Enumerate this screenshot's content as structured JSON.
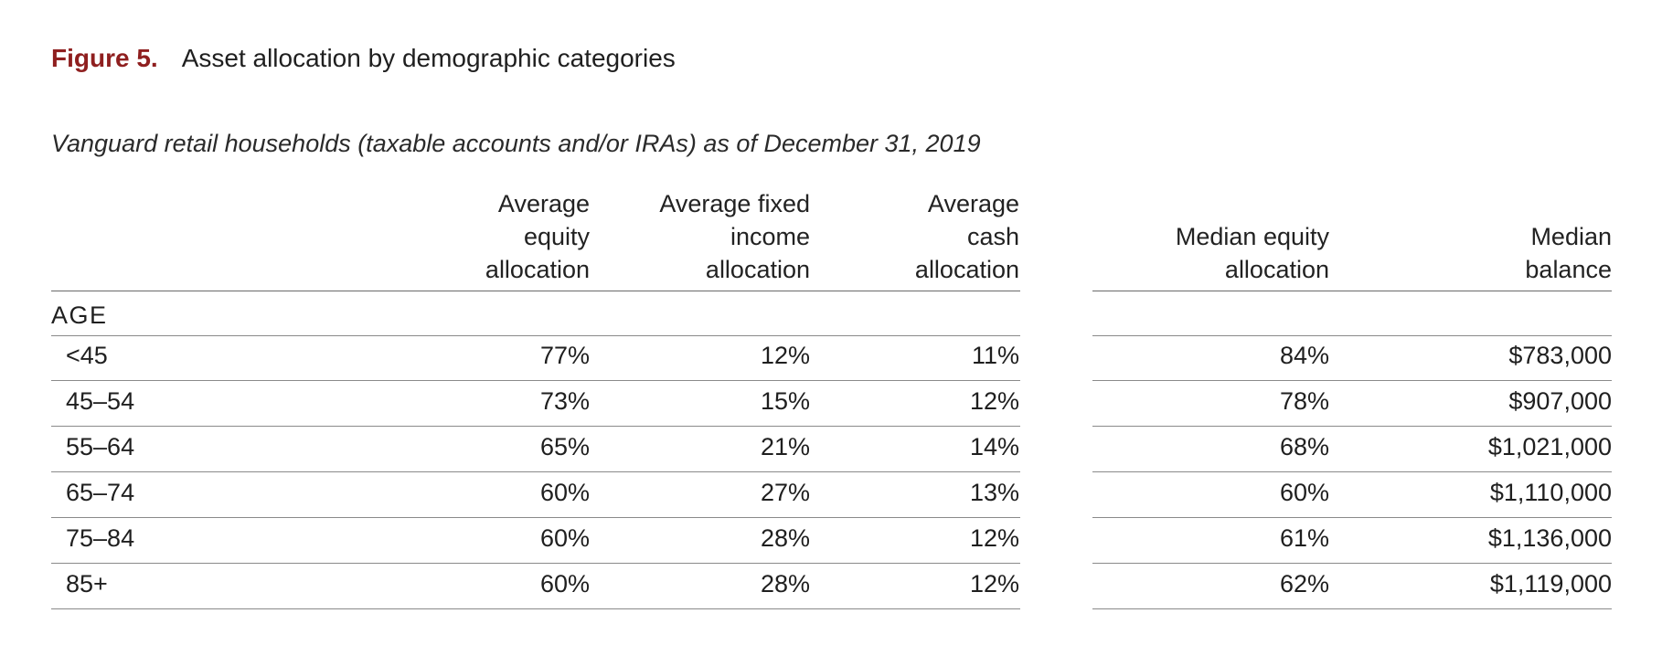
{
  "figure": {
    "label": "Figure 5.",
    "title": "Asset allocation by demographic categories",
    "subtitle": "Vanguard retail households (taxable accounts and/or IRAs) as of December 31, 2019"
  },
  "table": {
    "headers": [
      [
        "Average",
        "equity",
        "allocation"
      ],
      [
        "Average fixed",
        "income",
        "allocation"
      ],
      [
        "Average",
        "cash",
        "allocation"
      ],
      [
        "Median equity",
        "allocation"
      ],
      [
        "Median",
        "balance"
      ]
    ],
    "section_label": "AGE",
    "rows": [
      {
        "label": "<45",
        "values": [
          "77%",
          "12%",
          "11%",
          "84%",
          "$783,000"
        ]
      },
      {
        "label": "45–54",
        "values": [
          "73%",
          "15%",
          "12%",
          "78%",
          "$907,000"
        ]
      },
      {
        "label": "55–64",
        "values": [
          "65%",
          "21%",
          "14%",
          "68%",
          "$1,021,000"
        ]
      },
      {
        "label": "65–74",
        "values": [
          "60%",
          "27%",
          "13%",
          "60%",
          "$1,110,000"
        ]
      },
      {
        "label": "75–84",
        "values": [
          "60%",
          "28%",
          "12%",
          "61%",
          "$1,136,000"
        ]
      },
      {
        "label": "85+",
        "values": [
          "60%",
          "28%",
          "12%",
          "62%",
          "$1,119,000"
        ]
      }
    ]
  },
  "colors": {
    "figure_label": "#8f1f1f",
    "rule": "#8a8a8a"
  }
}
